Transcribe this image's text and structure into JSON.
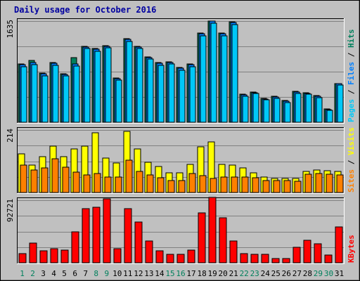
{
  "colors": {
    "background": "#c0c0c0",
    "panel": "#c0c0c0",
    "title": "#0000a0",
    "hits": "#00805c",
    "files": "#0080ff",
    "pages": "#00c8f8",
    "visits": "#ffff00",
    "sites": "#ff8000",
    "kbytes": "#ff0000",
    "weekday_label": "#000000",
    "weekend_label": "#00805c",
    "separator": "#000000"
  },
  "chart_data": {
    "type": "bar",
    "title": "Daily usage for October 2016",
    "categories": [
      "1",
      "2",
      "3",
      "4",
      "5",
      "6",
      "7",
      "8",
      "9",
      "10",
      "11",
      "12",
      "13",
      "14",
      "15",
      "16",
      "17",
      "18",
      "19",
      "20",
      "21",
      "22",
      "23",
      "24",
      "25",
      "26",
      "27",
      "28",
      "29",
      "30",
      "31"
    ],
    "weekend_days": [
      "1",
      "2",
      "8",
      "9",
      "15",
      "16",
      "22",
      "23",
      "29",
      "30"
    ],
    "grid": true,
    "panels": [
      {
        "id": "hits-files-pages",
        "ymax_label": "1635",
        "ylim": [
          0,
          1635
        ],
        "right_labels": [
          {
            "text": "Hits",
            "color": "#00805c"
          },
          {
            "text": "Files",
            "color": "#0080ff"
          },
          {
            "text": "Pages",
            "color": "#00c8f8"
          }
        ],
        "separator": " / ",
        "series": [
          {
            "name": "Hits",
            "color": "#00805c",
            "values": [
              940,
              1000,
              800,
              960,
              780,
              1050,
              1230,
              1190,
              1240,
              710,
              1350,
              1230,
              1060,
              960,
              980,
              880,
              940,
              1440,
              1635,
              1440,
              1620,
              450,
              490,
              390,
              420,
              350,
              500,
              480,
              430,
              220,
              630
            ]
          },
          {
            "name": "Files",
            "color": "#0080ff",
            "values": [
              930,
              960,
              780,
              950,
              770,
              940,
              1220,
              1180,
              1230,
              700,
              1340,
              1220,
              1050,
              950,
              970,
              870,
              930,
              1430,
              1630,
              1430,
              1610,
              440,
              480,
              380,
              410,
              340,
              490,
              470,
              420,
              210,
              620
            ]
          },
          {
            "name": "Pages",
            "color": "#00c8f8",
            "values": [
              900,
              930,
              750,
              920,
              750,
              910,
              1190,
              1150,
              1200,
              680,
              1310,
              1190,
              1020,
              920,
              940,
              840,
              900,
              1400,
              1600,
              1400,
              1580,
              420,
              460,
              360,
              390,
              320,
              470,
              450,
              400,
              190,
              600
            ]
          }
        ]
      },
      {
        "id": "visits-sites",
        "ymax_label": "214",
        "ylim": [
          0,
          214
        ],
        "right_labels": [
          {
            "text": "Visits",
            "color": "#ffff00"
          },
          {
            "text": "Sites",
            "color": "#ff8000"
          }
        ],
        "separator": " / ",
        "series": [
          {
            "name": "Visits",
            "color": "#ffff00",
            "values": [
              133,
              93,
              122,
              159,
              122,
              150,
              158,
              205,
              118,
              101,
              210,
              148,
              103,
              88,
              67,
              67,
              95,
              157,
              173,
              96,
              93,
              84,
              67,
              52,
              49,
              48,
              47,
              72,
              76,
              74,
              71
            ]
          },
          {
            "name": "Sites",
            "color": "#ff8000",
            "values": [
              94,
              76,
              85,
              116,
              87,
              70,
              59,
              65,
              54,
              54,
              110,
              73,
              60,
              50,
              42,
              42,
              66,
              57,
              48,
              53,
              53,
              53,
              50,
              42,
              41,
              40,
              38,
              63,
              64,
              63,
              61
            ]
          }
        ]
      },
      {
        "id": "kbytes",
        "ymax_label": "92721",
        "ylim": [
          0,
          92721
        ],
        "right_labels": [
          {
            "text": "KBytes",
            "color": "#ff0000"
          }
        ],
        "separator": " / ",
        "series": [
          {
            "name": "KBytes",
            "color": "#ff0000",
            "values": [
              13800,
              29500,
              17500,
              20500,
              19000,
              46000,
              80000,
              82000,
              95000,
              21000,
              80000,
              60000,
              32000,
              18000,
              12500,
              12500,
              19000,
              74000,
              97000,
              67000,
              32000,
              14000,
              12000,
              13000,
              6000,
              6500,
              23000,
              33000,
              28000,
              11000,
              53000
            ]
          }
        ]
      }
    ]
  }
}
